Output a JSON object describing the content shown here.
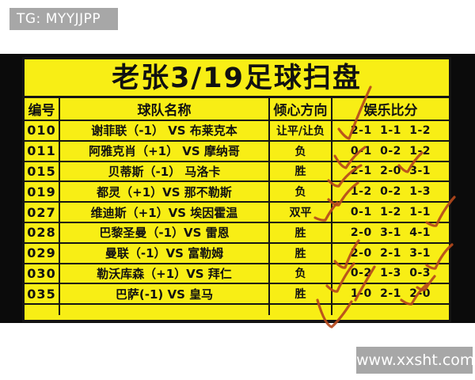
{
  "watermarks": {
    "top_left": "TG: MYYJJPP",
    "bottom_right": "www.xxsht.com"
  },
  "photo": {
    "title": "老张3/19足球扫盘",
    "table": {
      "columns": [
        "编号",
        "球队名称",
        "倾心方向",
        "娱乐比分"
      ],
      "rows": [
        {
          "id": "010",
          "match": "谢菲联（-1） VS 布莱克本",
          "direction": "让平/让负",
          "scores": "2-1 1-1 1-2"
        },
        {
          "id": "011",
          "match": "阿雅克肖（+1） VS 摩纳哥",
          "direction": "负",
          "scores": "0-1 0-2 1-2"
        },
        {
          "id": "015",
          "match": "贝蒂斯（-1） 马洛卡",
          "direction": "胜",
          "scores": "2-1 2-0 3-1"
        },
        {
          "id": "019",
          "match": "都灵（+1）VS 那不勒斯",
          "direction": "负",
          "scores": "1-2 0-2 1-3"
        },
        {
          "id": "027",
          "match": "维迪斯（+1）VS 埃因霍温",
          "direction": "双平",
          "scores": "0-1 1-2 1-1"
        },
        {
          "id": "028",
          "match": "巴黎圣曼（-1）VS 雷恩",
          "direction": "胜",
          "scores": "2-0 3-1 4-1"
        },
        {
          "id": "029",
          "match": "曼联（-1）VS 富勒姆",
          "direction": "胜",
          "scores": "2-0 2-1 3-1"
        },
        {
          "id": "030",
          "match": "勒沃库森（+1）VS 拜仁",
          "direction": "负",
          "scores": "0-2 1-3 0-3"
        },
        {
          "id": "035",
          "match": "巴萨(-1) VS 皇马",
          "direction": "胜",
          "scores": "1-0 2-1 2-0"
        }
      ]
    }
  },
  "annotations": {
    "checkmark_color": "#b5491c",
    "checkmarks": [
      "M428 163 Q436 174 441 175 Q452 145 468 110",
      "M423 197 Q431 211 437 212 Q447 196 461 186",
      "M504 209 Q511 217 515 217 Q523 202 533 193",
      "M415 228 Q423 236 428 235 Q439 218 456 209",
      "M415 252 Q423 260 428 259 Q438 241 452 231",
      "M398 275 Q406 279 411 278 Q418 265 426 256",
      "M539 281 Q547 286 551 285 Q561 263 574 249",
      "M423 330 Q431 339 436 338 Q444 316 453 304",
      "M539 335 Q546 340 550 339 Q559 319 571 309",
      "M413 361 Q421 369 426 368 Q436 346 447 333",
      "M527 363 Q533 367 537 366 Q543 356 549 349",
      "M449 379 Q458 362 473 337",
      "M401 379 Q410 410 419 413 Q431 402 444 381",
      "M507 379 Q515 385 520 384 Q528 369 539 359"
    ]
  },
  "colors": {
    "table_bg": "#f8ee15",
    "photo_bg": "#0b0b0b",
    "line": "#141414",
    "checkmark": "#b5491c",
    "watermark_bg": "#a7a7a7",
    "watermark_text": "#ffffff"
  }
}
